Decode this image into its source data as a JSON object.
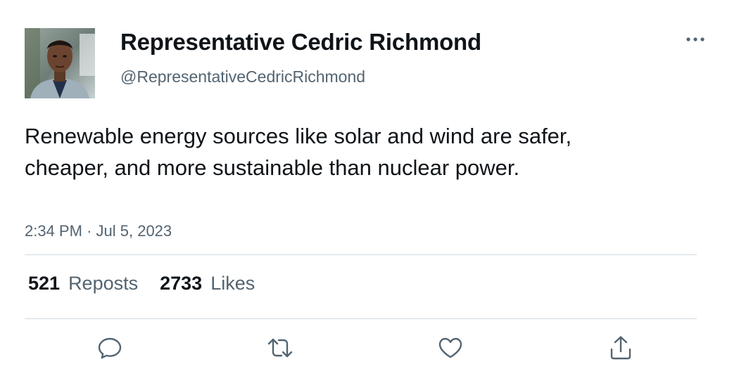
{
  "tweet": {
    "author": {
      "display_name": "Representative Cedric Richmond",
      "handle": "@RepresentativeCedricRichmond",
      "avatar_icon": "person-photo"
    },
    "text": "Renewable energy sources like solar and wind are safer, cheaper, and more sustainable than nuclear power.",
    "time": "2:34 PM",
    "separator": "·",
    "date": "Jul 5, 2023",
    "stats": {
      "reposts_count": "521",
      "reposts_label": "Reposts",
      "likes_count": "2733",
      "likes_label": "Likes"
    },
    "actions": [
      "reply-icon",
      "repost-icon",
      "like-icon",
      "share-icon"
    ]
  },
  "colors": {
    "text_primary": "#0f1419",
    "text_secondary": "#536471",
    "divider": "#cfd9de"
  }
}
